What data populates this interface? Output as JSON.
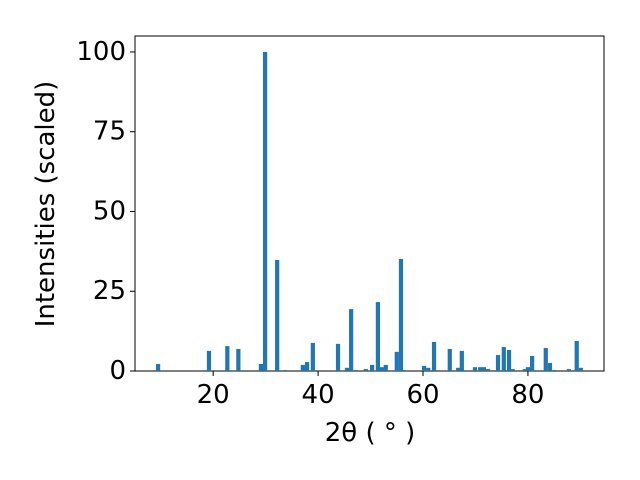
{
  "chart_data": {
    "type": "bar",
    "xlabel": "2θ ( ° )",
    "ylabel": "Intensities (scaled)",
    "x": [
      9.5,
      19.2,
      22.7,
      24.8,
      29.1,
      29.9,
      32.2,
      33.7,
      37.1,
      37.9,
      39.0,
      43.8,
      45.5,
      46.3,
      47.2,
      49.1,
      50.3,
      51.4,
      52.2,
      52.9,
      55.0,
      55.8,
      56.4,
      60.2,
      61.0,
      62.1,
      65.1,
      66.7,
      67.4,
      69.9,
      70.9,
      71.6,
      72.4,
      74.3,
      75.4,
      76.4,
      77.1,
      79.4,
      80.0,
      80.8,
      83.4,
      84.2,
      85.1,
      87.8,
      89.3,
      90.1
    ],
    "values": [
      2.2,
      6.3,
      7.8,
      6.9,
      2.2,
      100,
      34.8,
      0.3,
      1.9,
      2.8,
      8.8,
      8.5,
      1.0,
      19.4,
      0.3,
      0.6,
      1.9,
      21.6,
      1.2,
      1.9,
      6.0,
      35.1,
      0.3,
      1.6,
      1.0,
      9.1,
      6.9,
      1.0,
      6.3,
      1.2,
      1.2,
      1.2,
      0.6,
      5.0,
      7.5,
      6.6,
      0.6,
      0.6,
      1.2,
      4.7,
      7.2,
      2.5,
      0.3,
      0.6,
      9.4,
      1.0
    ],
    "color": "#1f77b4",
    "xlim": [
      5.1,
      94.5
    ],
    "xticks": [
      20,
      40,
      60,
      80
    ],
    "ylim": [
      0,
      105
    ],
    "yticks": [
      0,
      25,
      50,
      75,
      100
    ],
    "grid": false
  }
}
